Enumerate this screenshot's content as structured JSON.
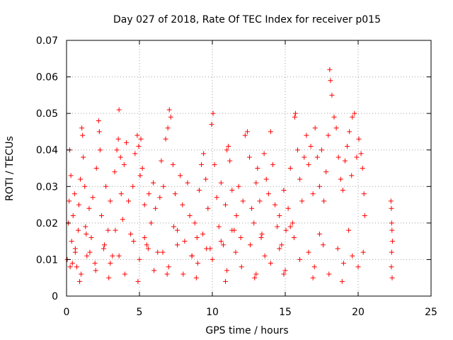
{
  "chart_data": {
    "type": "scatter",
    "title": "Day 027 of 2018, Rate Of TEC Index for receiver p015",
    "xlabel": "GPS time / hours",
    "ylabel": "ROTI / TECUs",
    "xlim": [
      0,
      25
    ],
    "ylim": [
      0,
      0.07
    ],
    "x_ticks": [
      0,
      5,
      10,
      15,
      20,
      25
    ],
    "y_ticks": [
      0,
      0.01,
      0.02,
      0.03,
      0.04,
      0.05,
      0.06,
      0.07
    ],
    "grid": true,
    "legend": "none",
    "marker": "+",
    "color": "#ff0000",
    "points": {
      "x": [
        0.05,
        0.12,
        0.18,
        0.22,
        0.3,
        0.35,
        0.4,
        0.45,
        0.55,
        0.6,
        0.7,
        0.8,
        0.85,
        0.95,
        1.05,
        1.1,
        1.15,
        1.25,
        1.3,
        1.4,
        1.55,
        1.7,
        1.8,
        1.95,
        2.05,
        2.2,
        2.25,
        2.3,
        2.4,
        2.55,
        2.7,
        2.85,
        3.0,
        3.15,
        3.3,
        3.45,
        3.55,
        3.6,
        3.7,
        3.75,
        3.85,
        3.95,
        4.1,
        4.25,
        4.4,
        4.55,
        4.7,
        4.85,
        4.95,
        5.05,
        5.1,
        5.2,
        5.35,
        5.5,
        5.65,
        5.8,
        5.95,
        6.1,
        6.25,
        6.4,
        6.5,
        6.65,
        6.8,
        6.95,
        7.05,
        7.15,
        7.3,
        7.45,
        7.6,
        7.8,
        7.95,
        8.1,
        8.3,
        8.45,
        8.6,
        8.8,
        8.95,
        9.1,
        9.25,
        9.4,
        9.55,
        9.7,
        9.85,
        9.95,
        10.05,
        10.15,
        10.3,
        10.45,
        10.6,
        10.75,
        10.9,
        11.0,
        11.1,
        11.2,
        11.35,
        11.5,
        11.65,
        11.8,
        11.95,
        12.1,
        12.25,
        12.4,
        12.55,
        12.7,
        12.85,
        13.0,
        13.1,
        13.25,
        13.4,
        13.55,
        13.7,
        13.85,
        14.0,
        14.15,
        14.3,
        14.45,
        14.6,
        14.75,
        14.9,
        15.05,
        15.2,
        15.35,
        15.5,
        15.65,
        15.7,
        15.85,
        16.0,
        16.15,
        16.3,
        16.45,
        16.6,
        16.75,
        16.9,
        17.05,
        17.2,
        17.35,
        17.5,
        17.65,
        17.8,
        17.95,
        18.05,
        18.1,
        18.2,
        18.35,
        18.5,
        18.65,
        18.8,
        18.95,
        19.1,
        19.25,
        19.4,
        19.55,
        19.6,
        19.75,
        19.9,
        20.05,
        20.2,
        20.3,
        20.4,
        20.45,
        22.25,
        22.28,
        22.3,
        22.32,
        22.35,
        22.3,
        22.28,
        22.33,
        0.25,
        1.0,
        2.0,
        3.0,
        4.0,
        5.0,
        6.0,
        7.0,
        8.0,
        9.0,
        10.0,
        11.0,
        12.0,
        13.0,
        14.0,
        15.0,
        16.0,
        17.0,
        18.0,
        19.0,
        20.0,
        0.6,
        1.6,
        2.6,
        3.6,
        4.6,
        5.6,
        6.6,
        7.6,
        8.6,
        9.6,
        10.6,
        11.6,
        12.6,
        13.6,
        14.6,
        15.6,
        16.6,
        17.6,
        18.6,
        19.6,
        20.35,
        0.9,
        2.9,
        4.9,
        6.9,
        8.9,
        10.9,
        12.9,
        14.9,
        16.9,
        18.9,
        1.35,
        3.35,
        5.35,
        7.35,
        9.35,
        11.35,
        13.35,
        15.35,
        17.35,
        19.35
      ],
      "y": [
        0.01,
        0.02,
        0.026,
        0.04,
        0.033,
        0.015,
        0.009,
        0.022,
        0.028,
        0.012,
        0.008,
        0.018,
        0.025,
        0.032,
        0.046,
        0.044,
        0.038,
        0.03,
        0.019,
        0.011,
        0.024,
        0.016,
        0.027,
        0.009,
        0.035,
        0.048,
        0.045,
        0.04,
        0.022,
        0.013,
        0.03,
        0.018,
        0.026,
        0.011,
        0.034,
        0.04,
        0.043,
        0.051,
        0.038,
        0.028,
        0.021,
        0.036,
        0.042,
        0.026,
        0.017,
        0.03,
        0.039,
        0.044,
        0.041,
        0.033,
        0.043,
        0.035,
        0.025,
        0.014,
        0.028,
        0.02,
        0.031,
        0.024,
        0.012,
        0.027,
        0.037,
        0.03,
        0.043,
        0.046,
        0.051,
        0.049,
        0.036,
        0.028,
        0.018,
        0.033,
        0.025,
        0.015,
        0.031,
        0.022,
        0.011,
        0.02,
        0.016,
        0.029,
        0.036,
        0.039,
        0.032,
        0.024,
        0.013,
        0.047,
        0.05,
        0.036,
        0.027,
        0.019,
        0.031,
        0.014,
        0.025,
        0.04,
        0.041,
        0.037,
        0.029,
        0.018,
        0.022,
        0.03,
        0.016,
        0.026,
        0.044,
        0.045,
        0.038,
        0.024,
        0.02,
        0.031,
        0.035,
        0.026,
        0.017,
        0.039,
        0.032,
        0.028,
        0.045,
        0.036,
        0.025,
        0.019,
        0.022,
        0.014,
        0.029,
        0.018,
        0.024,
        0.035,
        0.02,
        0.049,
        0.05,
        0.04,
        0.032,
        0.026,
        0.038,
        0.044,
        0.036,
        0.041,
        0.028,
        0.046,
        0.038,
        0.03,
        0.04,
        0.026,
        0.034,
        0.044,
        0.062,
        0.059,
        0.055,
        0.049,
        0.046,
        0.038,
        0.032,
        0.029,
        0.037,
        0.041,
        0.045,
        0.033,
        0.049,
        0.05,
        0.038,
        0.043,
        0.039,
        0.035,
        0.028,
        0.022,
        0.026,
        0.024,
        0.02,
        0.018,
        0.015,
        0.012,
        0.008,
        0.005,
        0.008,
        0.006,
        0.007,
        0.009,
        0.006,
        0.01,
        0.007,
        0.008,
        0.006,
        0.009,
        0.01,
        0.007,
        0.008,
        0.006,
        0.009,
        0.007,
        0.01,
        0.008,
        0.006,
        0.009,
        0.008,
        0.013,
        0.012,
        0.014,
        0.011,
        0.015,
        0.013,
        0.012,
        0.014,
        0.011,
        0.013,
        0.015,
        0.012,
        0.014,
        0.011,
        0.013,
        0.016,
        0.012,
        0.014,
        0.013,
        0.011,
        0.012,
        0.004,
        0.005,
        0.004,
        0.006,
        0.005,
        0.004,
        0.005,
        0.006,
        0.005,
        0.004,
        0.017,
        0.018,
        0.016,
        0.019,
        0.017,
        0.018,
        0.016,
        0.019,
        0.017,
        0.018
      ]
    }
  }
}
